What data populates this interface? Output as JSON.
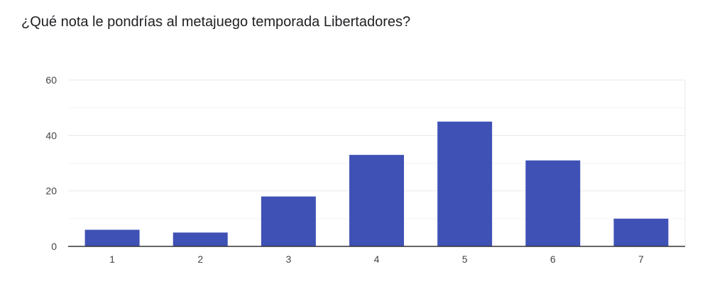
{
  "question": {
    "title": "¿Qué nota le pondrías al metajuego temporada Libertadores?"
  },
  "colors": {
    "bar": "#3f51b5",
    "grid": "#e8e8e8",
    "minor_grid": "#f3f3f3",
    "axis": "#333333"
  },
  "chart_data": {
    "type": "bar",
    "title": "¿Qué nota le pondrías al metajuego temporada Libertadores?",
    "xlabel": "",
    "ylabel": "",
    "categories": [
      "1",
      "2",
      "3",
      "4",
      "5",
      "6",
      "7"
    ],
    "values": [
      6,
      5,
      18,
      33,
      45,
      31,
      10
    ],
    "ylim": [
      0,
      60
    ],
    "yticks": [
      0,
      20,
      40,
      60
    ],
    "grid": true,
    "legend": "none"
  }
}
